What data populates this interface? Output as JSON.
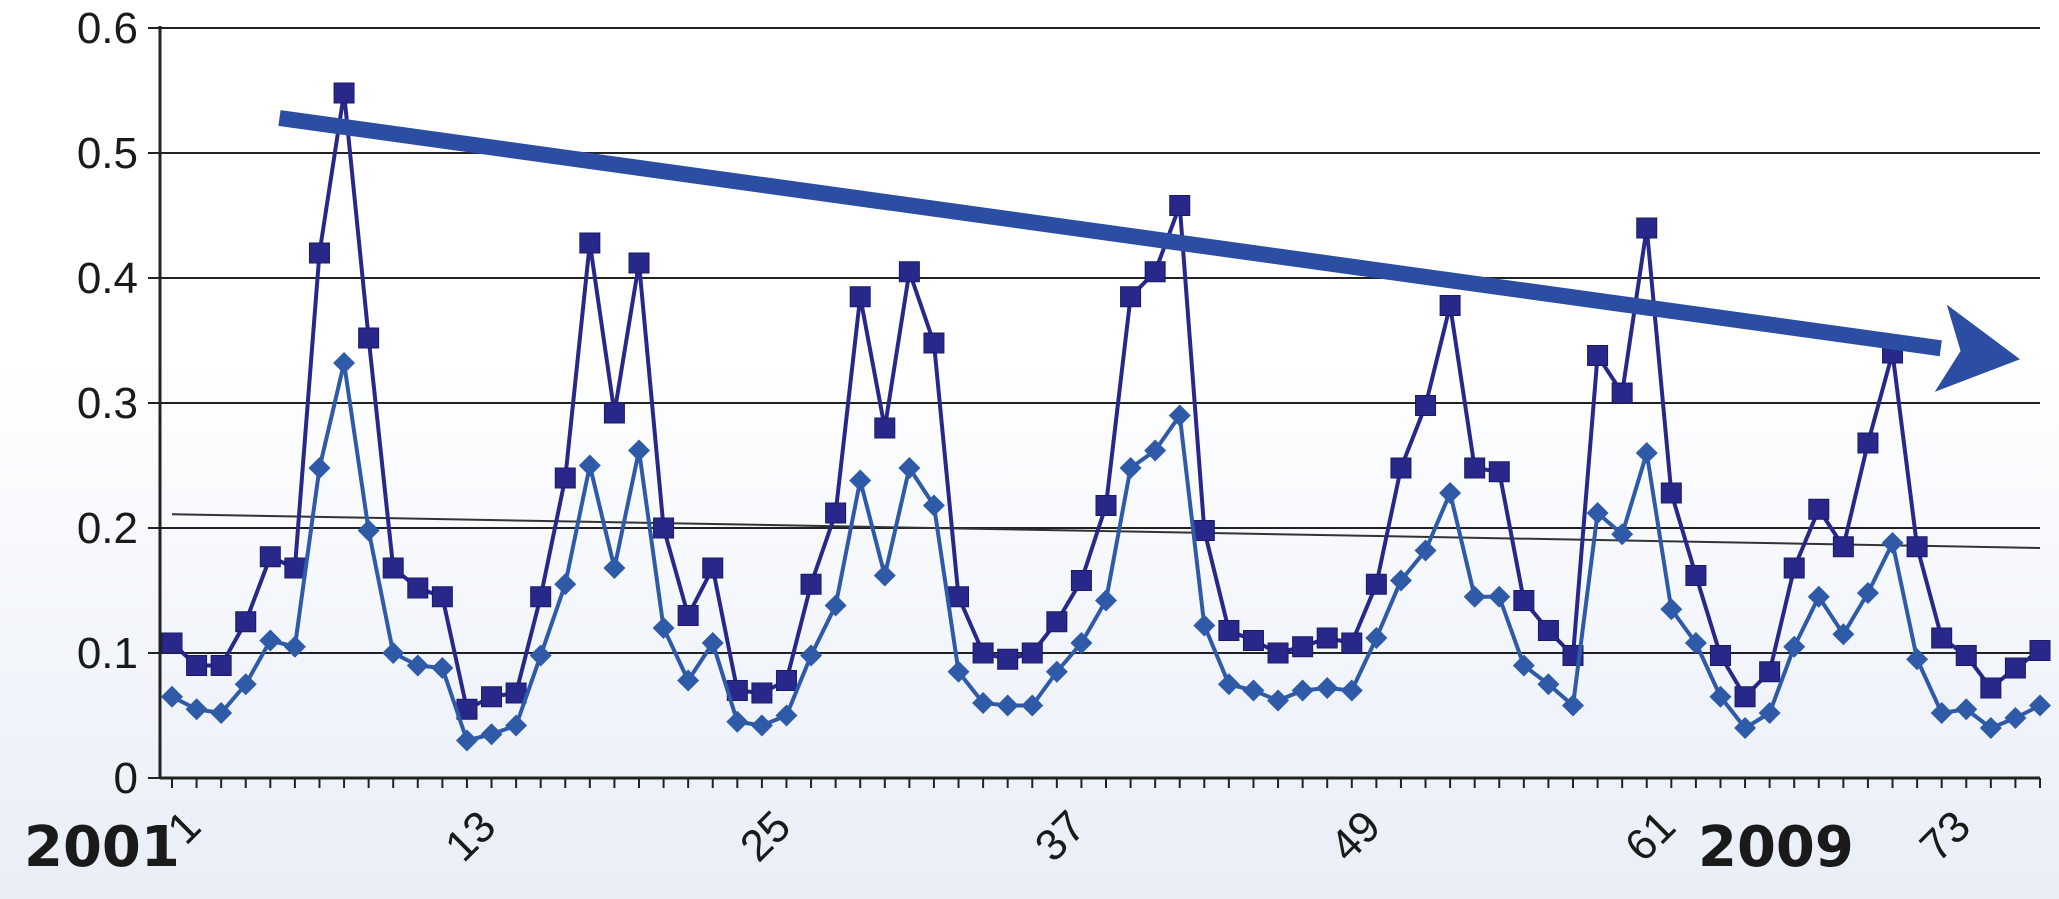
{
  "chart_data": {
    "type": "line",
    "title": "",
    "xlabel": "",
    "ylabel": "",
    "ylim": [
      0,
      0.6
    ],
    "yticks": [
      "0",
      "0.1",
      "0.2",
      "0.3",
      "0.4",
      "0.5",
      "0.6"
    ],
    "xlim": [
      1,
      77
    ],
    "xticks": [
      "1",
      "13",
      "25",
      "37",
      "49",
      "61",
      "73"
    ],
    "grid": "horizontal",
    "legend": "none",
    "colors": {
      "series_upper": "#28288a",
      "series_lower": "#2e5aa8",
      "trend_thin": "#333333",
      "trend_arrow": "#2b4ea3"
    },
    "series": [
      {
        "marker": "square",
        "x": [
          1,
          2,
          3,
          4,
          5,
          6,
          7,
          8,
          9,
          10,
          11,
          12,
          13,
          14,
          15,
          16,
          17,
          18,
          19,
          20,
          21,
          22,
          23,
          24,
          25,
          26,
          27,
          28,
          29,
          30,
          31,
          32,
          33,
          34,
          35,
          36,
          37,
          38,
          39,
          40,
          41,
          42,
          43,
          44,
          45,
          46,
          47,
          48,
          49,
          50,
          51,
          52,
          53,
          54,
          55,
          56,
          57,
          58,
          59,
          60,
          61,
          62,
          63,
          64,
          65,
          66,
          67,
          68,
          69,
          70,
          71,
          72,
          73,
          74,
          75,
          76,
          77
        ],
        "values": [
          0.108,
          0.09,
          0.09,
          0.125,
          0.177,
          0.168,
          0.42,
          0.548,
          0.352,
          0.168,
          0.152,
          0.145,
          0.055,
          0.065,
          0.068,
          0.145,
          0.24,
          0.428,
          0.292,
          0.412,
          0.2,
          0.13,
          0.168,
          0.07,
          0.068,
          0.078,
          0.155,
          0.212,
          0.385,
          0.28,
          0.405,
          0.348,
          0.145,
          0.1,
          0.095,
          0.1,
          0.125,
          0.158,
          0.218,
          0.385,
          0.405,
          0.458,
          0.198,
          0.118,
          0.11,
          0.1,
          0.105,
          0.112,
          0.108,
          0.155,
          0.248,
          0.298,
          0.378,
          0.248,
          0.245,
          0.142,
          0.118,
          0.098,
          0.338,
          0.308,
          0.44,
          0.228,
          0.162,
          0.098,
          0.065,
          0.085,
          0.168,
          0.215,
          0.185,
          0.268,
          0.34,
          0.185,
          0.112,
          0.098,
          0.072,
          0.088,
          0.102
        ]
      },
      {
        "marker": "diamond",
        "x": [
          1,
          2,
          3,
          4,
          5,
          6,
          7,
          8,
          9,
          10,
          11,
          12,
          13,
          14,
          15,
          16,
          17,
          18,
          19,
          20,
          21,
          22,
          23,
          24,
          25,
          26,
          27,
          28,
          29,
          30,
          31,
          32,
          33,
          34,
          35,
          36,
          37,
          38,
          39,
          40,
          41,
          42,
          43,
          44,
          45,
          46,
          47,
          48,
          49,
          50,
          51,
          52,
          53,
          54,
          55,
          56,
          57,
          58,
          59,
          60,
          61,
          62,
          63,
          64,
          65,
          66,
          67,
          68,
          69,
          70,
          71,
          72,
          73,
          74,
          75,
          76,
          77
        ],
        "values": [
          0.065,
          0.055,
          0.052,
          0.075,
          0.11,
          0.105,
          0.248,
          0.332,
          0.198,
          0.1,
          0.09,
          0.088,
          0.03,
          0.035,
          0.042,
          0.098,
          0.155,
          0.25,
          0.168,
          0.262,
          0.12,
          0.078,
          0.108,
          0.045,
          0.042,
          0.05,
          0.098,
          0.138,
          0.238,
          0.162,
          0.248,
          0.218,
          0.085,
          0.06,
          0.058,
          0.058,
          0.085,
          0.108,
          0.142,
          0.248,
          0.262,
          0.29,
          0.122,
          0.075,
          0.07,
          0.062,
          0.07,
          0.072,
          0.07,
          0.112,
          0.158,
          0.182,
          0.228,
          0.145,
          0.145,
          0.09,
          0.075,
          0.058,
          0.212,
          0.195,
          0.26,
          0.135,
          0.108,
          0.065,
          0.04,
          0.052,
          0.105,
          0.145,
          0.115,
          0.148,
          0.188,
          0.095,
          0.052,
          0.055,
          0.04,
          0.048,
          0.058
        ]
      }
    ],
    "trendline": {
      "x": [
        1,
        77
      ],
      "values": [
        0.211,
        0.184
      ]
    },
    "trend_arrow": {
      "x": [
        7,
        77
      ],
      "values": [
        0.528,
        0.335
      ]
    },
    "annotations": {
      "year_start": "2001",
      "year_end": "2009"
    }
  }
}
